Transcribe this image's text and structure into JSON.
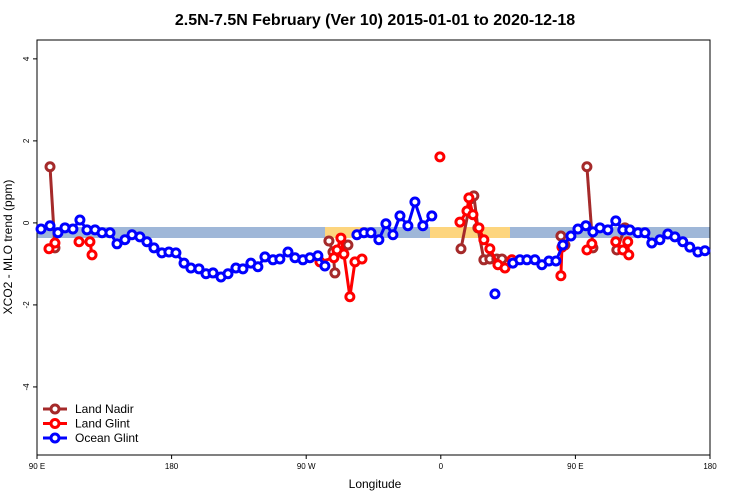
{
  "chart_data": {
    "type": "line",
    "title": "2.5N-7.5N February (Ver 10)   2015-01-01 to 2020-12-18",
    "x_label": "Longitude",
    "y_label": "XCO2 - MLO trend (ppm)",
    "xlim": [
      90,
      540
    ],
    "ylim": [
      -5.66,
      4.46
    ],
    "xticks": [
      {
        "value": 90,
        "label": "90 E"
      },
      {
        "value": 180,
        "label": "180"
      },
      {
        "value": 270,
        "label": "90 W"
      },
      {
        "value": 360,
        "label": "0"
      },
      {
        "value": 450,
        "label": "90 E"
      },
      {
        "value": 540,
        "label": "180"
      }
    ],
    "yticks": [
      -4,
      -2,
      0,
      2,
      4
    ],
    "legend": "bottomleft",
    "series": [
      {
        "name": "Land Nadir",
        "color": "#a52a2a",
        "x": [
          98.7,
          102,
          null,
          285.2,
          287.9,
          289.2,
          null,
          297.9,
          null,
          373.5,
          380.1,
          382.1,
          384.8,
          388.8,
          392.8,
          397.5,
          400.9,
          null,
          440.3,
          443,
          null,
          457.7,
          461.7,
          null,
          477.7,
          483.1
        ],
        "values": [
          1.37,
          -0.61,
          null,
          -0.44,
          -0.71,
          -1.22,
          null,
          -0.54,
          null,
          -0.63,
          0.59,
          0.66,
          -0.12,
          -0.9,
          -0.88,
          -0.88,
          -0.88,
          null,
          -0.32,
          -0.54,
          null,
          1.37,
          -0.61,
          null,
          -0.66,
          -0.12
        ]
      },
      {
        "name": "Land Glint",
        "color": "#ff0000",
        "x": [
          98,
          102,
          null,
          118.1,
          null,
          125.4,
          126.8,
          null,
          279.2,
          288.5,
          290.6,
          293.2,
          295.2,
          299.2,
          302.6,
          307.3,
          null,
          359.4,
          null,
          372.8,
          377.5,
          378.8,
          381.5,
          385.5,
          388.8,
          392.8,
          398.2,
          402.9,
          407.5,
          null,
          440.3,
          441,
          null,
          457.7,
          461,
          null,
          477,
          481.7,
          485,
          485.7
        ],
        "values": [
          -0.63,
          -0.49,
          null,
          -0.46,
          null,
          -0.46,
          -0.78,
          null,
          -0.95,
          -0.85,
          -0.66,
          -0.37,
          -0.76,
          -1.8,
          -0.95,
          -0.88,
          null,
          1.61,
          null,
          0.02,
          0.29,
          0.61,
          0.2,
          -0.12,
          -0.41,
          -0.63,
          -1.02,
          -1.1,
          -0.9,
          null,
          -1.29,
          -0.59,
          null,
          -0.66,
          -0.51,
          null,
          -0.46,
          -0.66,
          -0.46,
          -0.78
        ]
      },
      {
        "name": "Ocean Glint",
        "color": "#0000ff",
        "x": [
          92.7,
          98.7,
          104,
          108.7,
          114,
          118.7,
          123.4,
          128.8,
          133.5,
          138.8,
          143.5,
          148.8,
          153.5,
          158.8,
          163.5,
          168.2,
          173.5,
          178.2,
          182.9,
          188.3,
          192.9,
          198.3,
          203,
          207.7,
          213,
          217.7,
          223,
          227.7,
          233,
          237.7,
          242.4,
          247.8,
          252.4,
          257.8,
          262.5,
          267.8,
          272.5,
          277.8,
          282.5,
          null,
          303.9,
          308.6,
          313.3,
          318.6,
          323.3,
          328,
          332.7,
          338,
          342.7,
          348,
          354,
          null,
          396.2,
          null,
          408.2,
          412.9,
          417.6,
          422.9,
          427.6,
          432.3,
          437,
          441.6,
          447,
          451.7,
          457,
          461.7,
          466.4,
          471.7,
          477,
          481.7,
          486.4,
          491.8,
          496.5,
          501.1,
          506.5,
          511.8,
          516.5,
          521.8,
          526.5,
          531.9,
          536.6
        ],
        "values": [
          -0.15,
          -0.07,
          -0.24,
          -0.12,
          -0.15,
          0.07,
          -0.17,
          -0.17,
          -0.24,
          -0.24,
          -0.51,
          -0.41,
          -0.29,
          -0.34,
          -0.46,
          -0.61,
          -0.73,
          -0.71,
          -0.73,
          -0.98,
          -1.1,
          -1.12,
          -1.24,
          -1.22,
          -1.32,
          -1.24,
          -1.1,
          -1.12,
          -0.98,
          -1.07,
          -0.83,
          -0.9,
          -0.88,
          -0.71,
          -0.85,
          -0.9,
          -0.85,
          -0.8,
          -1.05,
          null,
          -0.29,
          -0.24,
          -0.24,
          -0.41,
          -0.02,
          -0.29,
          0.17,
          -0.07,
          0.51,
          -0.07,
          0.17,
          null,
          -1.73,
          null,
          -0.98,
          -0.9,
          -0.9,
          -0.9,
          -1.02,
          -0.93,
          -0.93,
          -0.54,
          -0.32,
          -0.15,
          -0.07,
          -0.22,
          -0.12,
          -0.17,
          0.05,
          -0.17,
          -0.17,
          -0.24,
          -0.24,
          -0.49,
          -0.41,
          -0.27,
          -0.34,
          -0.46,
          -0.59,
          -0.71,
          -0.68
        ]
      }
    ]
  }
}
